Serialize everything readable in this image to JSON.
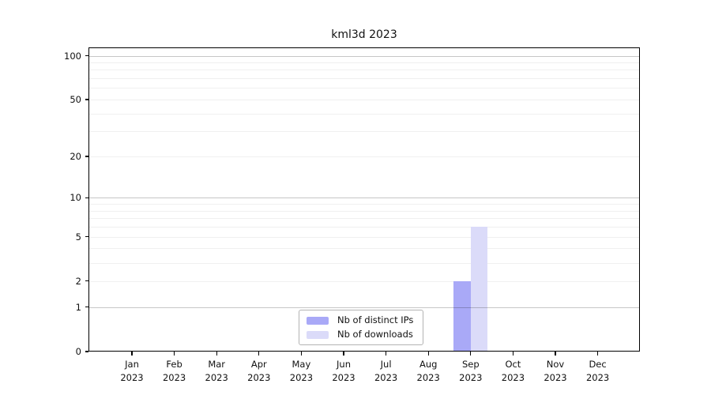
{
  "chart_data": {
    "type": "bar",
    "title": "kml3d 2023",
    "categories": [
      {
        "month": "Jan",
        "year": "2023"
      },
      {
        "month": "Feb",
        "year": "2023"
      },
      {
        "month": "Mar",
        "year": "2023"
      },
      {
        "month": "Apr",
        "year": "2023"
      },
      {
        "month": "May",
        "year": "2023"
      },
      {
        "month": "Jun",
        "year": "2023"
      },
      {
        "month": "Jul",
        "year": "2023"
      },
      {
        "month": "Aug",
        "year": "2023"
      },
      {
        "month": "Sep",
        "year": "2023"
      },
      {
        "month": "Oct",
        "year": "2023"
      },
      {
        "month": "Nov",
        "year": "2023"
      },
      {
        "month": "Dec",
        "year": "2023"
      }
    ],
    "series": [
      {
        "name": "Nb of distinct IPs",
        "color": "#a9a9f7",
        "values": [
          0,
          0,
          0,
          0,
          0,
          0,
          0,
          0,
          2,
          0,
          0,
          0
        ]
      },
      {
        "name": "Nb of downloads",
        "color": "#dbdbf9",
        "values": [
          0,
          0,
          0,
          0,
          0,
          0,
          0,
          0,
          6,
          0,
          0,
          0
        ]
      }
    ],
    "y_axis": {
      "scale": "log1p",
      "ticks": [
        0,
        1,
        2,
        5,
        10,
        20,
        50,
        100
      ],
      "max": 114,
      "major_gridlines": [
        1,
        10,
        100
      ],
      "minor_gridlines": [
        2,
        3,
        4,
        5,
        6,
        7,
        8,
        9,
        20,
        30,
        40,
        50,
        60,
        70,
        80,
        90
      ]
    },
    "grid": {
      "major_color": "rgba(0,0,0,0.22)",
      "minor_color": "#f0f0f0"
    },
    "legend": {
      "position": "bottom-center-inside"
    },
    "colors": {
      "frame": "#000000",
      "text": "#1a1a1a",
      "background": "#ffffff"
    }
  }
}
